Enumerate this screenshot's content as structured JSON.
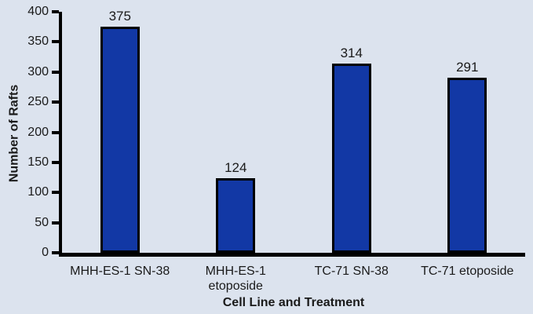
{
  "chart_data": {
    "type": "bar",
    "title": "",
    "categories": [
      "MHH-ES-1 SN-38",
      "MHH-ES-1 etoposide",
      "TC-71 SN-38",
      "TC-71 etoposide"
    ],
    "values": [
      375,
      124,
      314,
      291
    ],
    "data_labels": [
      "375",
      "124",
      "314",
      "291"
    ],
    "x_display_labels": [
      "MHH-ES-1 SN-38",
      "MHH-ES-1\netoposide",
      "TC-71 SN-38",
      "TC-71 etoposide"
    ],
    "xlabel": "Cell Line and Treatment",
    "ylabel": "Number of Rafts",
    "ylim": [
      0,
      400
    ],
    "ytick_step": 50,
    "ytick_labels": [
      "0",
      "50",
      "100",
      "150",
      "200",
      "250",
      "300",
      "350",
      "400"
    ],
    "grid": false,
    "legend": null,
    "colors": {
      "background": "#dce3ee",
      "bar_fill": "#1238a5",
      "bar_border": "#000000",
      "axis": "#000000",
      "text": "#1a1a1a"
    }
  }
}
